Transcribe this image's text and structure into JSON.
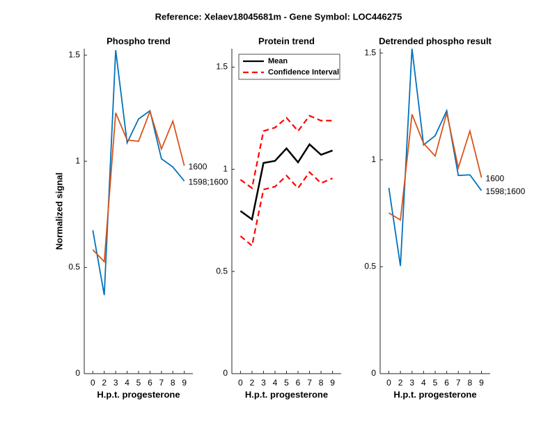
{
  "title": "Reference:  Xelaev18045681m - Gene Symbol:  LOC446275",
  "chart_data": [
    {
      "type": "line",
      "title": "Phospho trend",
      "xlabel": "H.p.t. progesterone",
      "ylabel": "Normalized signal",
      "categories": [
        "0",
        "2",
        "3",
        "4",
        "5",
        "6",
        "7",
        "8",
        "9"
      ],
      "ylim": [
        0,
        1.53
      ],
      "yticks": [
        0,
        0.5,
        1,
        1.5
      ],
      "series": [
        {
          "name": "1598;1600",
          "color": "#0072bd",
          "values": [
            0.675,
            0.37,
            1.523,
            1.087,
            1.199,
            1.238,
            1.012,
            0.973,
            0.907
          ]
        },
        {
          "name": "1600",
          "color": "#d95319",
          "values": [
            0.583,
            0.527,
            1.228,
            1.1,
            1.094,
            1.235,
            1.058,
            1.189,
            0.979
          ]
        }
      ]
    },
    {
      "type": "band-line",
      "title": "Protein trend",
      "xlabel": "H.p.t. progesterone",
      "categories": [
        "0",
        "2",
        "3",
        "4",
        "5",
        "6",
        "7",
        "8",
        "9"
      ],
      "ylim": [
        0,
        1.59
      ],
      "yticks": [
        0,
        0.5,
        1,
        1.5
      ],
      "legend": "top-left",
      "series": [
        {
          "name": "Mean",
          "color": "#000000",
          "values": [
            0.796,
            0.755,
            1.031,
            1.041,
            1.102,
            1.034,
            1.122,
            1.071,
            1.092
          ]
        },
        {
          "name": "Confidence Interval",
          "color": "#ff0000",
          "dashed": true,
          "values": [
            0.949,
            0.908,
            1.187,
            1.204,
            1.252,
            1.187,
            1.262,
            1.238,
            1.238
          ],
          "lower": [
            0.673,
            0.626,
            0.901,
            0.915,
            0.969,
            0.908,
            0.986,
            0.932,
            0.956
          ]
        }
      ]
    },
    {
      "type": "line",
      "title": "Detrended phospho result",
      "xlabel": "H.p.t. progesterone",
      "categories": [
        "0",
        "2",
        "3",
        "4",
        "5",
        "6",
        "7",
        "8",
        "9"
      ],
      "ylim": [
        0,
        1.52
      ],
      "yticks": [
        0,
        0.5,
        1,
        1.5
      ],
      "series": [
        {
          "name": "1598;1600",
          "color": "#0072bd",
          "values": [
            0.869,
            0.504,
            1.52,
            1.07,
            1.113,
            1.23,
            0.927,
            0.93,
            0.856
          ]
        },
        {
          "name": "1600",
          "color": "#d95319",
          "values": [
            0.752,
            0.719,
            1.213,
            1.077,
            1.018,
            1.22,
            0.963,
            1.135,
            0.917
          ]
        }
      ]
    }
  ]
}
